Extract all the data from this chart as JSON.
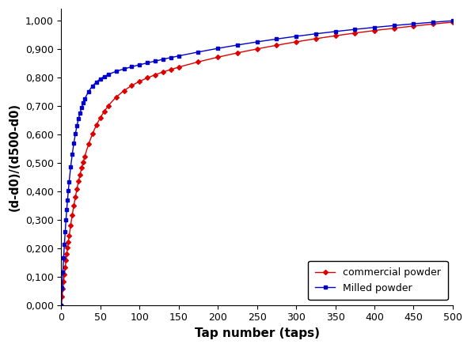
{
  "title": "",
  "xlabel": "Tap number (taps)",
  "ylabel": "(d-d0)/(d500-d0)",
  "xlim": [
    0,
    500
  ],
  "ylim": [
    0.0,
    1.04
  ],
  "ytick_values": [
    0.0,
    0.1,
    0.2,
    0.3,
    0.4,
    0.5,
    0.6,
    0.7,
    0.8,
    0.9,
    1.0
  ],
  "ytick_labels": [
    "0,000",
    "0,100",
    "0,200",
    "0,300",
    "0,400",
    "0,500",
    "0,600",
    "0,700",
    "0,800",
    "0,900",
    "1,000"
  ],
  "xtick_values": [
    0,
    50,
    100,
    150,
    200,
    250,
    300,
    350,
    400,
    450,
    500
  ],
  "legend_labels": [
    "commercial powder",
    "Milled powder"
  ],
  "red_color": "#dd0000",
  "blue_color": "#0000cc",
  "background_color": "#ffffff",
  "red_params": {
    "a": 0.98,
    "b": 0.055
  },
  "blue_params": {
    "a": 0.98,
    "b": 0.1
  }
}
